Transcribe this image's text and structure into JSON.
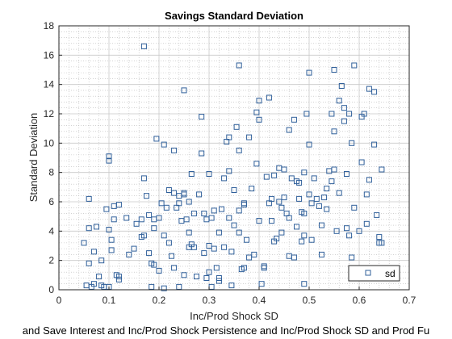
{
  "chart_data": {
    "type": "scatter",
    "title": "Savings Standard Deviation",
    "xlabel": "Inc/Prod Shock SD",
    "ylabel": "Standard Deviation",
    "footer": "and Save Interest and Inc/Prod Shock Persistence and Inc/Prod Shock SD and Prod Fu",
    "xlim": [
      0,
      0.7
    ],
    "ylim": [
      0,
      18
    ],
    "xticks": [
      "0",
      "0.1",
      "0.2",
      "0.3",
      "0.4",
      "0.5",
      "0.6",
      "0.7"
    ],
    "yticks": [
      "0",
      "2",
      "4",
      "6",
      "8",
      "10",
      "12",
      "14",
      "16",
      "18"
    ],
    "grid": true,
    "minor_grid": true,
    "legend_position": "bottom-right",
    "marker": "square",
    "series": [
      {
        "name": "sd",
        "color": "#2f5f9a",
        "points": [
          [
            0.05,
            3.2
          ],
          [
            0.055,
            0.3
          ],
          [
            0.06,
            1.8
          ],
          [
            0.06,
            6.2
          ],
          [
            0.06,
            4.2
          ],
          [
            0.065,
            0.2
          ],
          [
            0.07,
            0.4
          ],
          [
            0.07,
            2.6
          ],
          [
            0.075,
            4.3
          ],
          [
            0.08,
            0.9
          ],
          [
            0.085,
            2.0
          ],
          [
            0.085,
            0.3
          ],
          [
            0.09,
            0.2
          ],
          [
            0.095,
            5.5
          ],
          [
            0.1,
            9.1
          ],
          [
            0.1,
            8.8
          ],
          [
            0.1,
            4.1
          ],
          [
            0.1,
            0.2
          ],
          [
            0.105,
            2.7
          ],
          [
            0.105,
            3.4
          ],
          [
            0.11,
            5.7
          ],
          [
            0.11,
            4.8
          ],
          [
            0.115,
            1.0
          ],
          [
            0.12,
            0.7
          ],
          [
            0.12,
            0.9
          ],
          [
            0.12,
            5.8
          ],
          [
            0.135,
            4.9
          ],
          [
            0.14,
            2.4
          ],
          [
            0.15,
            2.8
          ],
          [
            0.155,
            4.5
          ],
          [
            0.165,
            3.6
          ],
          [
            0.165,
            4.8
          ],
          [
            0.17,
            16.6
          ],
          [
            0.17,
            7.6
          ],
          [
            0.17,
            3.7
          ],
          [
            0.175,
            6.4
          ],
          [
            0.18,
            5.1
          ],
          [
            0.18,
            2.5
          ],
          [
            0.185,
            1.8
          ],
          [
            0.185,
            0.2
          ],
          [
            0.19,
            4.2
          ],
          [
            0.19,
            4.8
          ],
          [
            0.19,
            1.7
          ],
          [
            0.195,
            10.3
          ],
          [
            0.2,
            4.9
          ],
          [
            0.2,
            1.3
          ],
          [
            0.205,
            5.9
          ],
          [
            0.21,
            3.7
          ],
          [
            0.21,
            9.9
          ],
          [
            0.21,
            0.1
          ],
          [
            0.215,
            5.6
          ],
          [
            0.22,
            6.8
          ],
          [
            0.22,
            3.2
          ],
          [
            0.225,
            2.3
          ],
          [
            0.23,
            9.5
          ],
          [
            0.23,
            6.6
          ],
          [
            0.23,
            1.5
          ],
          [
            0.235,
            5.6
          ],
          [
            0.24,
            0.2
          ],
          [
            0.24,
            6.4
          ],
          [
            0.24,
            5.9
          ],
          [
            0.245,
            4.7
          ],
          [
            0.25,
            6.6
          ],
          [
            0.25,
            6.5
          ],
          [
            0.25,
            13.6
          ],
          [
            0.25,
            1.0
          ],
          [
            0.255,
            4.8
          ],
          [
            0.26,
            3.9
          ],
          [
            0.26,
            6.0
          ],
          [
            0.26,
            2.9
          ],
          [
            0.265,
            7.9
          ],
          [
            0.265,
            3.1
          ],
          [
            0.27,
            5.2
          ],
          [
            0.27,
            2.9
          ],
          [
            0.275,
            0.9
          ],
          [
            0.28,
            6.5
          ],
          [
            0.285,
            11.8
          ],
          [
            0.285,
            9.3
          ],
          [
            0.29,
            2.5
          ],
          [
            0.29,
            5.2
          ],
          [
            0.295,
            4.8
          ],
          [
            0.295,
            0.8
          ],
          [
            0.3,
            7.9
          ],
          [
            0.3,
            3.0
          ],
          [
            0.305,
            0.2
          ],
          [
            0.305,
            4.9
          ],
          [
            0.31,
            5.4
          ],
          [
            0.31,
            2.8
          ],
          [
            0.315,
            1.5
          ],
          [
            0.32,
            0.6
          ],
          [
            0.32,
            3.9
          ],
          [
            0.32,
            0.8
          ],
          [
            0.325,
            5.5
          ],
          [
            0.33,
            2.9
          ],
          [
            0.33,
            7.6
          ],
          [
            0.335,
            10.1
          ],
          [
            0.34,
            10.4
          ],
          [
            0.34,
            8.1
          ],
          [
            0.34,
            4.9
          ],
          [
            0.345,
            2.6
          ],
          [
            0.345,
            0.3
          ],
          [
            0.35,
            6.8
          ],
          [
            0.35,
            4.4
          ],
          [
            0.355,
            11.1
          ],
          [
            0.36,
            15.3
          ],
          [
            0.36,
            9.5
          ],
          [
            0.36,
            5.4
          ],
          [
            0.36,
            3.9
          ],
          [
            0.365,
            1.4
          ],
          [
            0.37,
            5.9
          ],
          [
            0.37,
            1.5
          ],
          [
            0.37,
            5.8
          ],
          [
            0.375,
            3.4
          ],
          [
            0.38,
            10.4
          ],
          [
            0.38,
            2.2
          ],
          [
            0.385,
            6.9
          ],
          [
            0.39,
            2.4
          ],
          [
            0.395,
            12.1
          ],
          [
            0.395,
            8.6
          ],
          [
            0.4,
            12.9
          ],
          [
            0.4,
            11.6
          ],
          [
            0.4,
            4.7
          ],
          [
            0.405,
            0.4
          ],
          [
            0.41,
            1.5
          ],
          [
            0.41,
            1.6
          ],
          [
            0.415,
            7.7
          ],
          [
            0.42,
            13.1
          ],
          [
            0.42,
            5.9
          ],
          [
            0.425,
            6.2
          ],
          [
            0.43,
            7.8
          ],
          [
            0.43,
            3.3
          ],
          [
            0.435,
            3.5
          ],
          [
            0.44,
            8.3
          ],
          [
            0.44,
            6.0
          ],
          [
            0.445,
            5.6
          ],
          [
            0.445,
            3.9
          ],
          [
            0.45,
            8.2
          ],
          [
            0.45,
            6.3
          ],
          [
            0.455,
            5.2
          ],
          [
            0.46,
            10.9
          ],
          [
            0.46,
            4.9
          ],
          [
            0.46,
            2.3
          ],
          [
            0.465,
            7.6
          ],
          [
            0.47,
            11.6
          ],
          [
            0.47,
            2.2
          ],
          [
            0.475,
            4.3
          ],
          [
            0.48,
            7.3
          ],
          [
            0.48,
            6.2
          ],
          [
            0.485,
            5.3
          ],
          [
            0.485,
            3.3
          ],
          [
            0.49,
            8.0
          ],
          [
            0.49,
            5.2
          ],
          [
            0.49,
            3.7
          ],
          [
            0.49,
            0.4
          ],
          [
            0.495,
            12.0
          ],
          [
            0.5,
            14.8
          ],
          [
            0.5,
            9.9
          ],
          [
            0.5,
            6.5
          ],
          [
            0.505,
            5.9
          ],
          [
            0.505,
            3.4
          ],
          [
            0.51,
            7.6
          ],
          [
            0.515,
            6.2
          ],
          [
            0.52,
            5.7
          ],
          [
            0.525,
            4.4
          ],
          [
            0.525,
            2.4
          ],
          [
            0.53,
            6.3
          ],
          [
            0.535,
            6.9
          ],
          [
            0.535,
            5.5
          ],
          [
            0.54,
            8.1
          ],
          [
            0.545,
            7.4
          ],
          [
            0.545,
            12.0
          ],
          [
            0.55,
            15.0
          ],
          [
            0.55,
            10.8
          ],
          [
            0.55,
            8.2
          ],
          [
            0.555,
            4.0
          ],
          [
            0.56,
            6.6
          ],
          [
            0.565,
            13.9
          ],
          [
            0.57,
            12.4
          ],
          [
            0.57,
            11.5
          ],
          [
            0.575,
            7.9
          ],
          [
            0.575,
            4.2
          ],
          [
            0.58,
            3.7
          ],
          [
            0.585,
            10.0
          ],
          [
            0.585,
            2.2
          ],
          [
            0.59,
            15.3
          ],
          [
            0.59,
            5.6
          ],
          [
            0.6,
            4.0
          ],
          [
            0.605,
            8.7
          ],
          [
            0.605,
            11.8
          ],
          [
            0.61,
            12.0
          ],
          [
            0.615,
            6.5
          ],
          [
            0.615,
            4.5
          ],
          [
            0.62,
            13.7
          ],
          [
            0.62,
            7.5
          ],
          [
            0.63,
            9.9
          ],
          [
            0.63,
            13.5
          ],
          [
            0.635,
            5.1
          ],
          [
            0.64,
            3.6
          ],
          [
            0.64,
            3.2
          ],
          [
            0.645,
            8.2
          ],
          [
            0.645,
            3.2
          ],
          [
            0.58,
            12.0
          ],
          [
            0.56,
            12.9
          ],
          [
            0.425,
            4.7
          ],
          [
            0.475,
            7.4
          ],
          [
            0.3,
            1.2
          ]
        ]
      }
    ]
  }
}
